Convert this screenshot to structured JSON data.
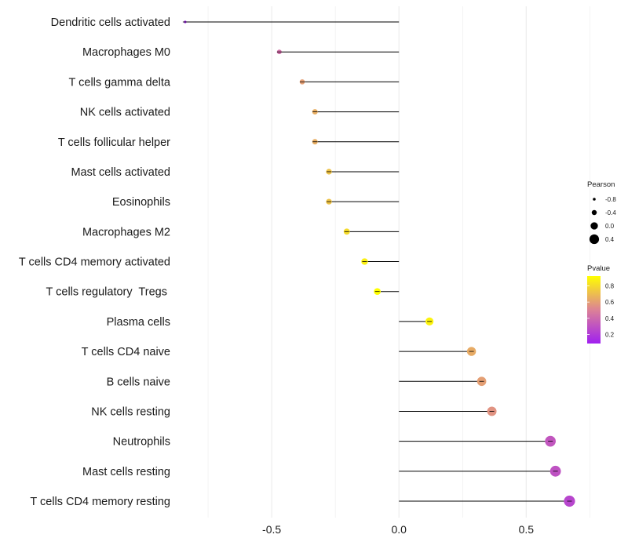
{
  "chart_data": {
    "type": "lollipop",
    "title": "",
    "xlabel": "",
    "ylabel": "",
    "xlim": [
      -0.855,
      0.755
    ],
    "x_ticks": [
      -0.5,
      0.0,
      0.5
    ],
    "x_tick_labels": [
      "-0.5",
      "0.0",
      "0.5"
    ],
    "x_minor_ticks": [
      -0.75,
      -0.25,
      0.25,
      0.75
    ],
    "grid": true,
    "categories": [
      "Dendritic cells activated",
      "Macrophages M0",
      "T cells gamma delta",
      "NK cells activated",
      "T cells follicular helper",
      "Mast cells activated",
      "Eosinophils",
      "Macrophages M2",
      "T cells CD4 memory activated",
      "T cells regulatory  Tregs ",
      "Plasma cells",
      "T cells CD4 naive",
      "B cells naive",
      "NK cells resting",
      "Neutrophils",
      "Mast cells resting",
      "T cells CD4 memory resting"
    ],
    "values": [
      -0.84,
      -0.47,
      -0.38,
      -0.33,
      -0.33,
      -0.275,
      -0.275,
      -0.205,
      -0.135,
      -0.085,
      0.12,
      0.285,
      0.325,
      0.365,
      0.595,
      0.615,
      0.67
    ],
    "pvalues": [
      0.1,
      0.42,
      0.6,
      0.65,
      0.65,
      0.72,
      0.72,
      0.8,
      0.87,
      0.92,
      0.88,
      0.64,
      0.6,
      0.56,
      0.32,
      0.3,
      0.25
    ],
    "legend": {
      "size_title": "Pearson",
      "size_labels": [
        "-0.8",
        "-0.4",
        "0.0",
        "0.4"
      ],
      "size_values": [
        -0.8,
        -0.4,
        0.0,
        0.4
      ],
      "color_title": "Pvalue",
      "color_labels": [
        "0.8",
        "0.6",
        "0.4",
        "0.2"
      ],
      "color_values": [
        0.8,
        0.6,
        0.4,
        0.2
      ],
      "color_range": [
        0.09,
        0.92
      ],
      "placement": "right"
    },
    "colors": {
      "low": "#a020f0",
      "mid": "#dc8296",
      "high": "#ffff00",
      "stem": "#000000",
      "grid": "#ebebeb"
    }
  }
}
